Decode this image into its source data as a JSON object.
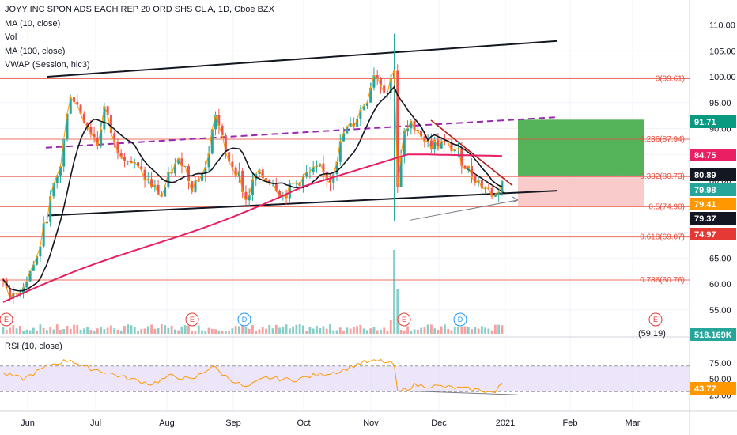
{
  "legend": {
    "title": "JOYY INC SPON ADS EACH REP 20 ORD SHS CL A, 1D, Cboe BZX",
    "lines": [
      "MA (10, close)",
      "Vol",
      "MA (100, close)",
      "VWAP (Session, hlc3)"
    ]
  },
  "rsi_legend": "RSI (10, close)",
  "colors": {
    "candle_up": "#26a69a",
    "candle_down": "#ef5350",
    "ma10": "#131722",
    "ma100": "#e91e63",
    "vwap": "#ff9800",
    "fib_line": "#e74c3c",
    "channel": "#131722",
    "dashed_channel": "#9c27b0",
    "target_zone": "#4caf50",
    "stop_zone": "#f8c5c5",
    "rsi": "#ff9800",
    "rsi_band": "#e1d5f7",
    "earnings_marker": "#e53935",
    "dividend_marker": "#2196f3"
  },
  "chart_data": [
    {
      "type": "candlestick",
      "title": "JOYY INC SPON ADS EACH REP 20 ORD SHS CL A, 1D, Cboe BZX",
      "x_ticks": [
        "Jun",
        "Jul",
        "Aug",
        "Sep",
        "Oct",
        "Nov",
        "Dec",
        "2021",
        "Feb",
        "Mar"
      ],
      "y_ticks": [
        "110.00",
        "105.00",
        "100.00",
        "95.00",
        "90.00",
        "85.00",
        "80.00",
        "75.00",
        "70.00",
        "65.00",
        "60.00",
        "55.00"
      ],
      "y_range": [
        51.5,
        112.5
      ],
      "series": [
        {
          "name": "MA (10, close)"
        },
        {
          "name": "MA (100, close)"
        },
        {
          "name": "VWAP (Session, hlc3)"
        }
      ],
      "fib_levels": [
        {
          "label": "0(99.61)",
          "value": 99.61
        },
        {
          "label": "0.236(87.94)",
          "value": 87.94
        },
        {
          "label": "0.382(80.73)",
          "value": 80.73
        },
        {
          "label": "0.5(74.90)",
          "value": 74.9
        },
        {
          "label": "0.618(69.07)",
          "value": 69.07
        },
        {
          "label": "0.786(60.76)",
          "value": 60.76
        }
      ],
      "position": {
        "target": 91.71,
        "entry": 80.89,
        "stop": 74.97
      },
      "price_tags": [
        {
          "text": "91.71",
          "value": 91.71,
          "color": "#089981"
        },
        {
          "text": "84.75",
          "value": 84.75,
          "color": "#e91e63"
        },
        {
          "text": "80.89",
          "value": 80.89,
          "color": "#131722"
        },
        {
          "text": "79.98",
          "value": 79.98,
          "color": "#26a69a"
        },
        {
          "text": "79.41",
          "value": 79.41,
          "color": "#ff9800"
        },
        {
          "text": "79.37",
          "value": 79.37,
          "color": "#131722"
        },
        {
          "text": "74.97",
          "value": 74.97,
          "color": "#e53935"
        }
      ],
      "volume_tag": "518.169K",
      "partial_label": "(59.19)",
      "markers": [
        "E",
        "E",
        "D",
        "E",
        "D",
        "E"
      ]
    },
    {
      "type": "line",
      "title": "RSI (10, close)",
      "y_ticks": [
        "75.00",
        "50.00",
        "25.00"
      ],
      "y_range": [
        20,
        90
      ],
      "band": [
        30,
        70
      ],
      "series": [
        {
          "name": "RSI (10, close)"
        }
      ],
      "last_value": "43.77"
    }
  ]
}
